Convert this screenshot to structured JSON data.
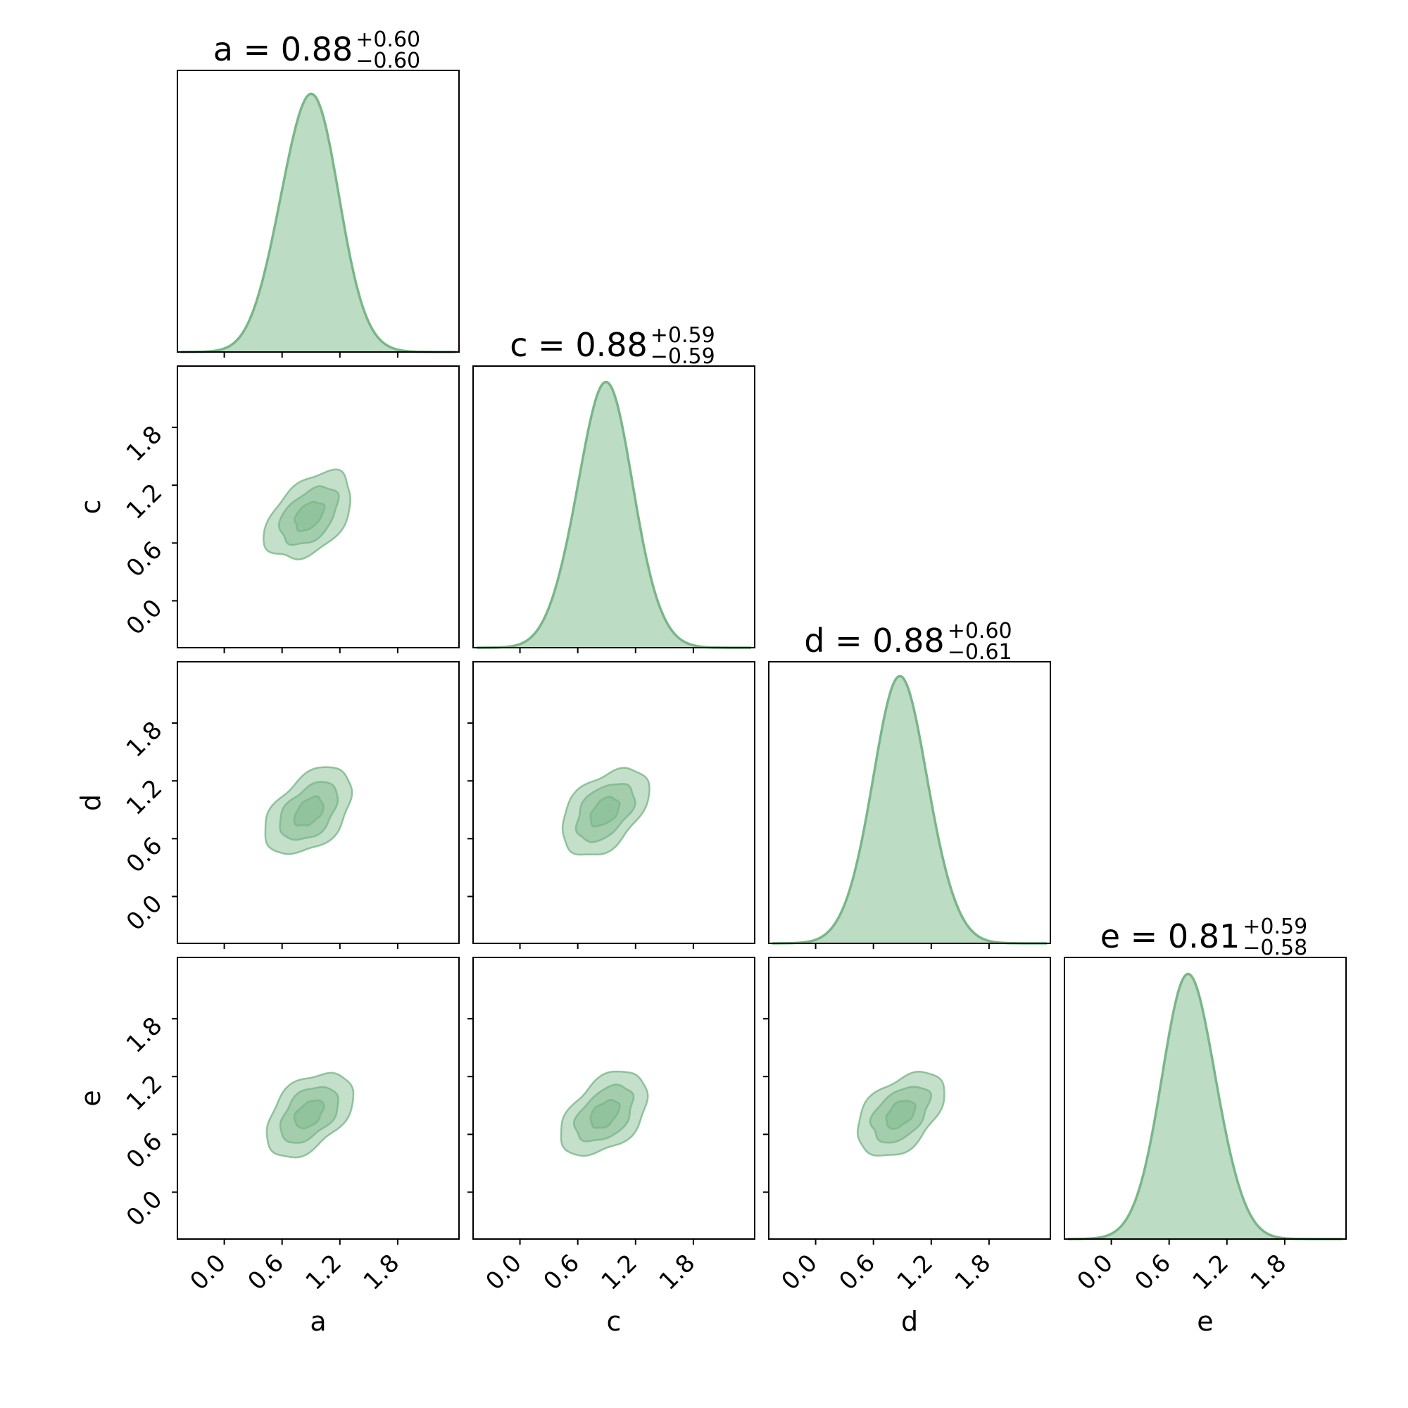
{
  "chart_data": {
    "type": "corner",
    "parameters": [
      "a",
      "c",
      "d",
      "e"
    ],
    "axis_labels": [
      "a",
      "c",
      "d",
      "e"
    ],
    "titles": [
      {
        "param": "a",
        "prefix": "a = 0.88",
        "upper": "+0.60",
        "lower": "−0.60"
      },
      {
        "param": "c",
        "prefix": "c = 0.88",
        "upper": "+0.59",
        "lower": "−0.59"
      },
      {
        "param": "d",
        "prefix": "d = 0.88",
        "upper": "+0.60",
        "lower": "−0.61"
      },
      {
        "param": "e",
        "prefix": "e = 0.81",
        "upper": "+0.59",
        "lower": "−0.58"
      }
    ],
    "medians": [
      0.88,
      0.88,
      0.88,
      0.81
    ],
    "sigmas": [
      0.3,
      0.3,
      0.3,
      0.29
    ],
    "axis_range": [
      -0.45,
      2.4
    ],
    "tick_values": [
      0.0,
      0.6,
      1.2,
      1.8
    ],
    "tick_labels": [
      "0.0",
      "0.6",
      "1.2",
      "1.8"
    ],
    "correlations": {
      "c|a": 0.45,
      "d|a": 0.45,
      "d|c": 0.45,
      "e|a": 0.45,
      "e|c": 0.45,
      "e|d": 0.45
    },
    "contour_levels_sigma": [
      0.5,
      1.0,
      1.5
    ],
    "grid": false,
    "legend": "none",
    "colors": {
      "fill": "#7cb98a",
      "line": "#79b688",
      "frame": "#000000"
    }
  }
}
